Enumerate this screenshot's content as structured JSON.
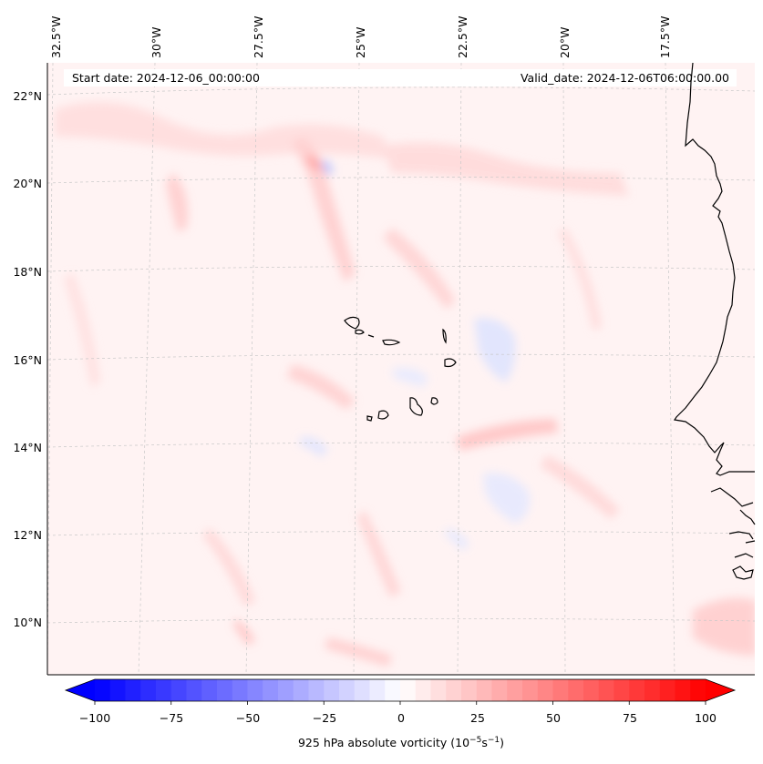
{
  "header": {
    "start_date": "Start date: 2024-12-06_00:00:00",
    "valid_date": "Valid_date: 2024-12-06T06:00:00.00"
  },
  "map": {
    "longitude_labels": [
      "32.5°W",
      "30°W",
      "27.5°W",
      "25°W",
      "22.5°W",
      "20°W",
      "17.5°W"
    ],
    "latitude_labels": [
      "22°N",
      "20°N",
      "18°N",
      "16°N",
      "14°N",
      "12°N",
      "10°N"
    ],
    "coastline_color": "#000000",
    "gridline_style": "dashed light gray"
  },
  "colorbar": {
    "ticks": [
      "−100",
      "−75",
      "−50",
      "−25",
      "0",
      "25",
      "50",
      "75",
      "100"
    ],
    "min": -100,
    "max": 100,
    "levels": 41,
    "extend": "both",
    "colormap": "bwr",
    "low_color": "#0000ff",
    "mid_color": "#ffffff",
    "high_color": "#ff0000",
    "label_text": "925 hPa absolute vorticity (10",
    "label_exp1": "−5",
    "label_mid": "s",
    "label_exp2": "−1",
    "label_close": ")"
  }
}
